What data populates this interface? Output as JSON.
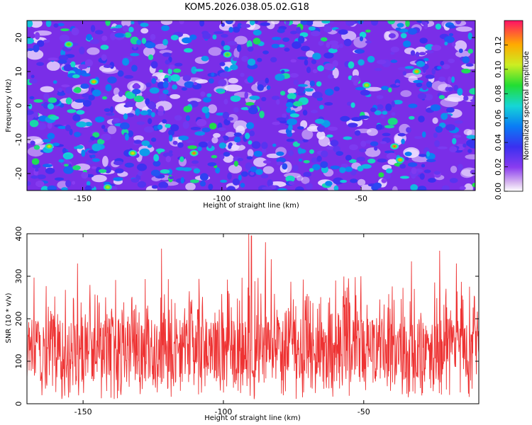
{
  "title": "KOM5.2026.038.05.02.G18",
  "chart_data": [
    {
      "type": "heatmap",
      "xlabel": "Height of straight line (km)",
      "ylabel": "Frequency (Hz)",
      "xlim": [
        -170,
        -9
      ],
      "ylim": [
        -25,
        25
      ],
      "x_ticks": [
        -150,
        -100,
        -50
      ],
      "y_ticks": [
        20,
        10,
        0,
        -10,
        -20
      ],
      "colorbar": {
        "label": "Normalized spectral amplitude",
        "range": [
          0,
          0.14
        ],
        "ticks": [
          0.0,
          0.02,
          0.04,
          0.06,
          0.08,
          0.1,
          0.12
        ],
        "tick_labels": [
          "0.00",
          "0.02",
          "0.04",
          "0.06",
          "0.08",
          "0.10",
          "0.12"
        ]
      },
      "peaks": [
        {
          "x": -146,
          "y": 7,
          "v": 0.12
        },
        {
          "x": -110,
          "y": -14,
          "v": 0.13
        },
        {
          "x": -132,
          "y": -14,
          "v": 0.11
        },
        {
          "x": -30,
          "y": 10,
          "v": 0.12
        },
        {
          "x": -38,
          "y": -12,
          "v": 0.13
        },
        {
          "x": -36,
          "y": -16,
          "v": 0.12
        },
        {
          "x": -48,
          "y": 6,
          "v": 0.1
        },
        {
          "x": -162,
          "y": -12,
          "v": 0.11
        },
        {
          "x": -155,
          "y": 18,
          "v": 0.09
        },
        {
          "x": -98,
          "y": 15,
          "v": 0.08
        },
        {
          "x": -141,
          "y": -24,
          "v": 0.1
        }
      ]
    },
    {
      "type": "line",
      "xlabel": "Height of straight line (km)",
      "ylabel": "SNR (10 * v/v)",
      "xlim": [
        -170,
        -9
      ],
      "ylim": [
        0,
        400
      ],
      "x_ticks": [
        -150,
        -100,
        -50
      ],
      "y_ticks": [
        0,
        100,
        200,
        300,
        400
      ],
      "series": [
        {
          "color": "#ee3333",
          "baseline_mean": 110,
          "notable_peaks": [
            {
              "x": -91,
              "y": 400
            },
            {
              "x": -90,
              "y": 395
            },
            {
              "x": -85,
              "y": 380
            },
            {
              "x": -122,
              "y": 365
            },
            {
              "x": -23,
              "y": 360
            },
            {
              "x": -152,
              "y": 330
            },
            {
              "x": -83,
              "y": 340
            },
            {
              "x": -17,
              "y": 330
            },
            {
              "x": -33,
              "y": 335
            },
            {
              "x": -51,
              "y": 300
            },
            {
              "x": -60,
              "y": 290
            }
          ]
        }
      ]
    }
  ]
}
